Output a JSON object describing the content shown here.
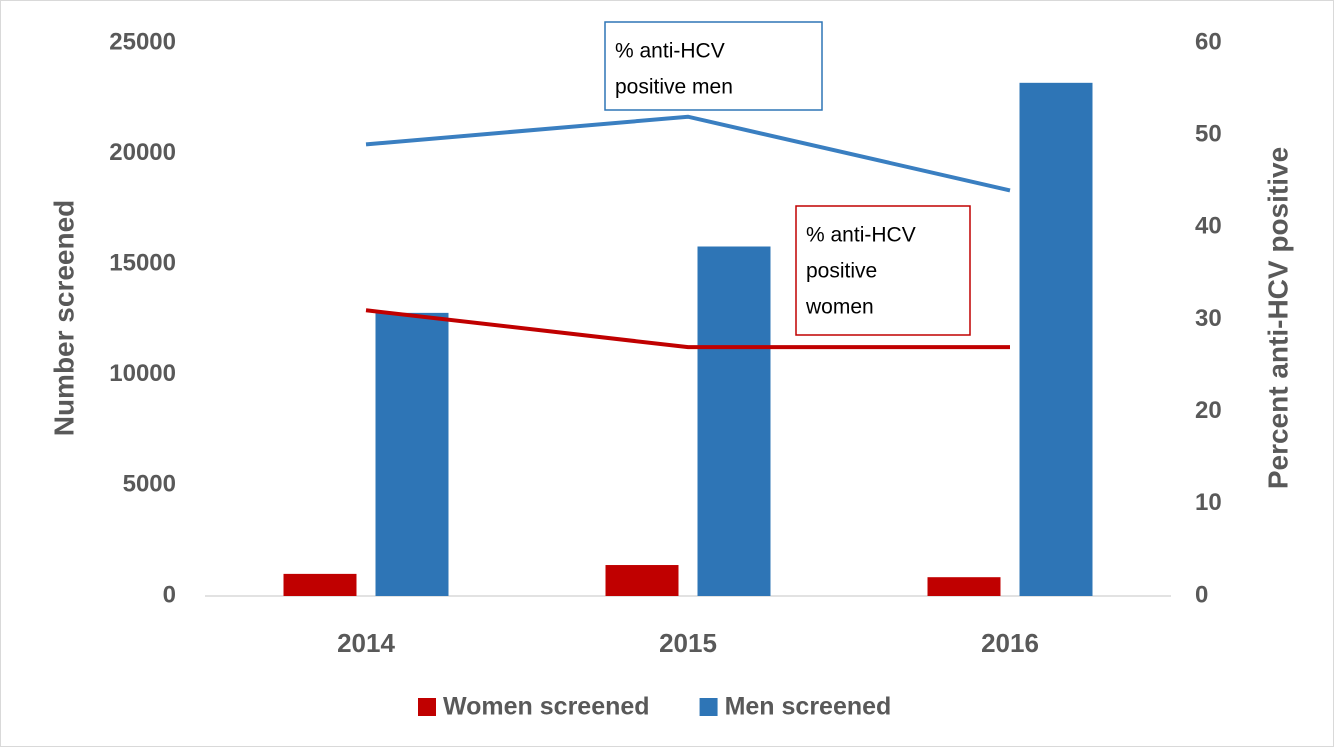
{
  "chart_data": {
    "type": "bar",
    "categories": [
      "2014",
      "2015",
      "2016"
    ],
    "y_label": "Number screened",
    "y2_label": "Percent anti-HCV positive",
    "ylim": [
      0,
      25000
    ],
    "yticks": [
      0,
      5000,
      10000,
      15000,
      20000,
      25000
    ],
    "y2lim": [
      0,
      60
    ],
    "y2ticks": [
      0,
      10,
      20,
      30,
      40,
      50,
      60
    ],
    "grid": false,
    "legend": "bottom",
    "series": [
      {
        "name": "Women screened",
        "type": "bar",
        "color": "#c00000",
        "values": [
          1000,
          1400,
          850
        ]
      },
      {
        "name": "Men screened",
        "type": "bar",
        "color": "#2e75b6",
        "values": [
          12800,
          15800,
          23200
        ]
      },
      {
        "type": "line",
        "axis": "y2",
        "color": "#3a7fc1",
        "values": [
          49,
          52,
          44
        ]
      },
      {
        "type": "line",
        "axis": "y2",
        "color": "#c00000",
        "values": [
          31,
          27,
          27
        ]
      }
    ],
    "annotations": [
      {
        "lines": [
          "% anti-HCV",
          "positive men"
        ],
        "color": "#2e75b6"
      },
      {
        "lines": [
          "% anti-HCV",
          "positive",
          "women"
        ],
        "color": "#c00000"
      }
    ]
  }
}
